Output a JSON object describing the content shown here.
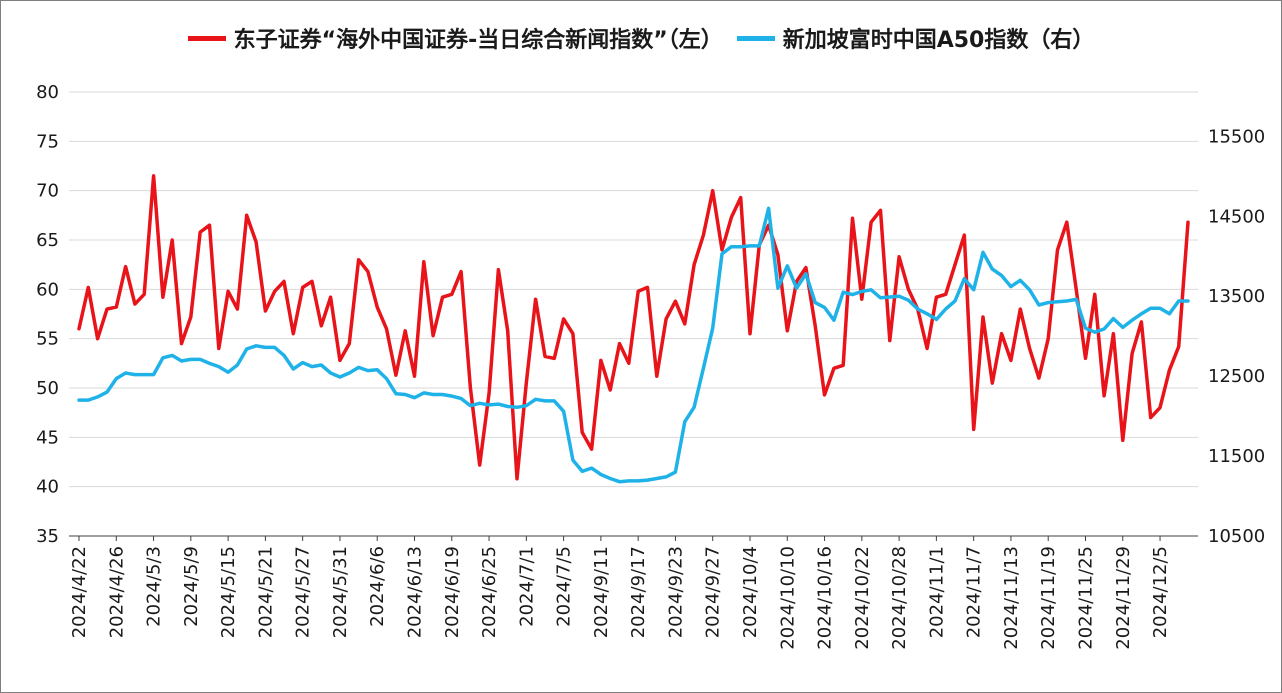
{
  "legend": {
    "left_series": "东子证券“海外中国证券-当日综合新闻指数”（左）",
    "right_series": "新加坡富时中国A50指数（右）"
  },
  "colors": {
    "left_series": "#e8141a",
    "right_series": "#1fb2e8",
    "grid": "#d9d9d9",
    "axis": "#404040"
  },
  "chart_data": {
    "type": "line",
    "title": "",
    "xlabel": "",
    "ylabel_left": "",
    "ylabel_right": "",
    "grid": "horizontal",
    "legend_position": "top",
    "y_left": {
      "range": [
        35,
        80
      ],
      "ticks": [
        35,
        40,
        45,
        50,
        55,
        60,
        65,
        70,
        75,
        80
      ]
    },
    "y_right": {
      "range": [
        10500,
        15500
      ],
      "ticks": [
        10500,
        11500,
        12500,
        13500,
        14500,
        15500
      ]
    },
    "x_tick_labels": [
      "2024/4/22",
      "2024/4/26",
      "2024/5/3",
      "2024/5/9",
      "2024/5/15",
      "2024/5/21",
      "2024/5/27",
      "2024/5/31",
      "2024/6/6",
      "2024/6/13",
      "2024/6/19",
      "2024/6/25",
      "2024/7/1",
      "2024/7/5",
      "2024/9/11",
      "2024/9/17",
      "2024/9/23",
      "2024/9/27",
      "2024/10/4",
      "2024/10/10",
      "2024/10/16",
      "2024/10/22",
      "2024/10/28",
      "2024/11/1",
      "2024/11/7",
      "2024/11/13",
      "2024/11/19",
      "2024/11/25",
      "2024/11/29",
      "2024/12/5"
    ],
    "x_tick_every": 4,
    "series": [
      {
        "name": "东子证券“海外中国证券-当日综合新闻指数”（左）",
        "axis": "left",
        "values": [
          56.0,
          60.2,
          55.0,
          58.0,
          58.2,
          62.3,
          58.5,
          59.5,
          71.5,
          59.2,
          65.0,
          54.5,
          57.2,
          65.8,
          66.5,
          54.0,
          59.8,
          58.0,
          67.5,
          64.8,
          57.8,
          59.8,
          60.8,
          55.5,
          60.2,
          60.8,
          56.3,
          59.2,
          52.8,
          54.5,
          63.0,
          61.8,
          58.2,
          56.0,
          51.3,
          55.8,
          51.2,
          62.8,
          55.3,
          59.2,
          59.5,
          61.8,
          50.0,
          42.2,
          49.5,
          62.0,
          55.8,
          40.8,
          50.5,
          59.0,
          53.2,
          53.0,
          57.0,
          55.5,
          45.5,
          43.8,
          52.8,
          49.8,
          54.5,
          52.5,
          59.8,
          60.2,
          51.2,
          57.0,
          58.8,
          56.5,
          62.5,
          65.5,
          70.0,
          64.0,
          67.3,
          69.3,
          55.5,
          64.5,
          66.5,
          63.5,
          55.8,
          60.8,
          62.2,
          56.3,
          49.3,
          52.0,
          52.3,
          67.2,
          59.0,
          66.8,
          68.0,
          54.8,
          63.3,
          60.0,
          58.0,
          54.0,
          59.2,
          59.5,
          62.5,
          65.5,
          45.8,
          57.2,
          50.5,
          55.5,
          52.8,
          58.0,
          54.0,
          51.0,
          55.0,
          64.0,
          66.8,
          60.0,
          53.0,
          59.5,
          49.2,
          55.5,
          44.7,
          53.5,
          56.7,
          47.0,
          48.0,
          51.8,
          54.2,
          66.8
        ]
      },
      {
        "name": "新加坡富时中国A50指数（右）",
        "axis": "right",
        "values": [
          12200,
          12200,
          12240,
          12300,
          12470,
          12540,
          12520,
          12520,
          12520,
          12730,
          12760,
          12690,
          12710,
          12710,
          12660,
          12620,
          12550,
          12640,
          12840,
          12880,
          12860,
          12860,
          12760,
          12590,
          12670,
          12620,
          12640,
          12540,
          12490,
          12540,
          12610,
          12570,
          12580,
          12470,
          12280,
          12270,
          12230,
          12290,
          12270,
          12270,
          12250,
          12220,
          12130,
          12160,
          12140,
          12150,
          12120,
          12110,
          12130,
          12210,
          12190,
          12190,
          12060,
          11450,
          11310,
          11350,
          11270,
          11220,
          11180,
          11190,
          11190,
          11200,
          11220,
          11240,
          11300,
          11930,
          12110,
          12600,
          13100,
          14030,
          14120,
          14120,
          14130,
          14130,
          14600,
          13600,
          13880,
          13600,
          13780,
          13420,
          13360,
          13200,
          13550,
          13520,
          13560,
          13580,
          13480,
          13490,
          13500,
          13450,
          13340,
          13280,
          13210,
          13340,
          13440,
          13720,
          13580,
          14050,
          13840,
          13760,
          13620,
          13700,
          13580,
          13390,
          13420,
          13430,
          13440,
          13460,
          13100,
          13050,
          13090,
          13220,
          13110,
          13200,
          13280,
          13350,
          13350,
          13280,
          13440,
          13440
        ]
      }
    ]
  }
}
